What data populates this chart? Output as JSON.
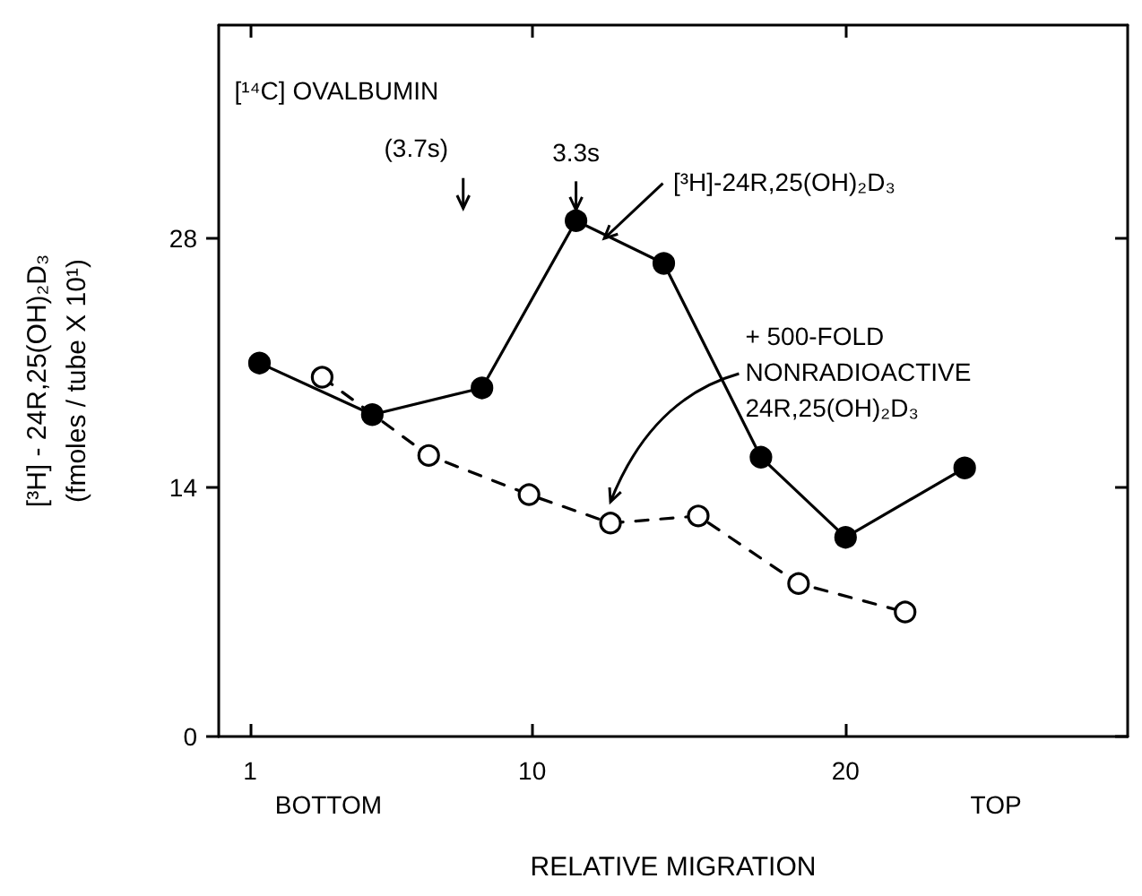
{
  "chart_data": {
    "type": "line",
    "xlabel": "RELATIVE MIGRATION",
    "ylabel": "[³H] - 24R,25(OH)₂D₃\n(fmoles / tube X 10¹)",
    "xlim": [
      0,
      29
    ],
    "xticks": [
      1,
      10,
      20
    ],
    "ylim": [
      0,
      40
    ],
    "yticks": [
      0,
      14,
      28
    ],
    "grid": false,
    "legend": false,
    "marker": "circle",
    "series": [
      {
        "name": "[³H]-24R,25(OH)₂D₃",
        "color": "#000000",
        "line_style": "solid",
        "x": [
          1.3,
          4.9,
          8.4,
          11.4,
          14.2,
          17.3,
          20.0,
          23.8
        ],
        "values": [
          21.0,
          18.1,
          19.6,
          29.0,
          26.6,
          15.7,
          11.2,
          15.1
        ]
      },
      {
        "name": "+ 500-FOLD\nNONRADIOACTIVE\n24R,25(OH)₂D₃",
        "color": "#000000",
        "line_style": "dashed",
        "x": [
          3.3,
          6.7,
          9.9,
          12.5,
          15.3,
          18.5,
          21.9
        ],
        "values": [
          20.2,
          15.8,
          13.6,
          12.0,
          12.4,
          8.6,
          7.0
        ]
      }
    ],
    "annotations": [
      "[¹⁴C] OVALBUMIN",
      "(3.7s)",
      {
        "text": "3.3s",
        "x": 11.4,
        "y": 29.0
      },
      "BOTTOM",
      "TOP"
    ]
  }
}
